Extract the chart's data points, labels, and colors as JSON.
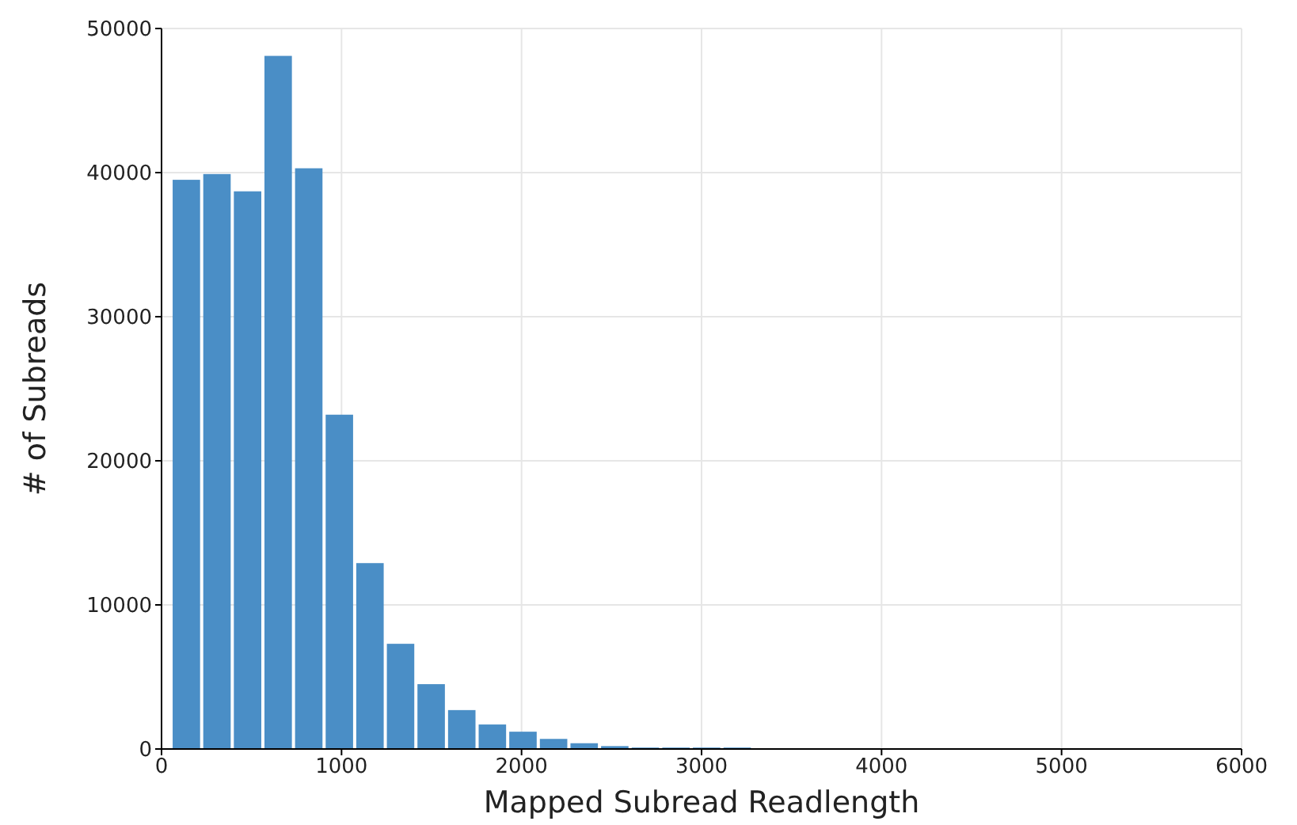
{
  "chart_data": {
    "type": "histogram",
    "xlabel": "Mapped Subread Readlength",
    "ylabel": "# of Subreads",
    "bins": [
      50,
      220,
      390,
      560,
      730,
      900,
      1070,
      1240,
      1410,
      1580,
      1750,
      1920,
      2090,
      2260,
      2430,
      2600,
      2770,
      2940,
      3110,
      3280,
      3450
    ],
    "values": [
      39500,
      39900,
      38700,
      48100,
      40300,
      23200,
      12900,
      7300,
      4500,
      2700,
      1700,
      1200,
      700,
      400,
      200,
      100,
      100,
      100,
      100,
      0
    ],
    "color": "#4a8ec6",
    "xlim": [
      0,
      6000
    ],
    "xticks": [
      0,
      1000,
      2000,
      3000,
      4000,
      5000,
      6000
    ],
    "ylim": [
      0,
      50000
    ],
    "yticks": [
      0,
      10000,
      20000,
      30000,
      40000,
      50000
    ],
    "grid": true
  }
}
